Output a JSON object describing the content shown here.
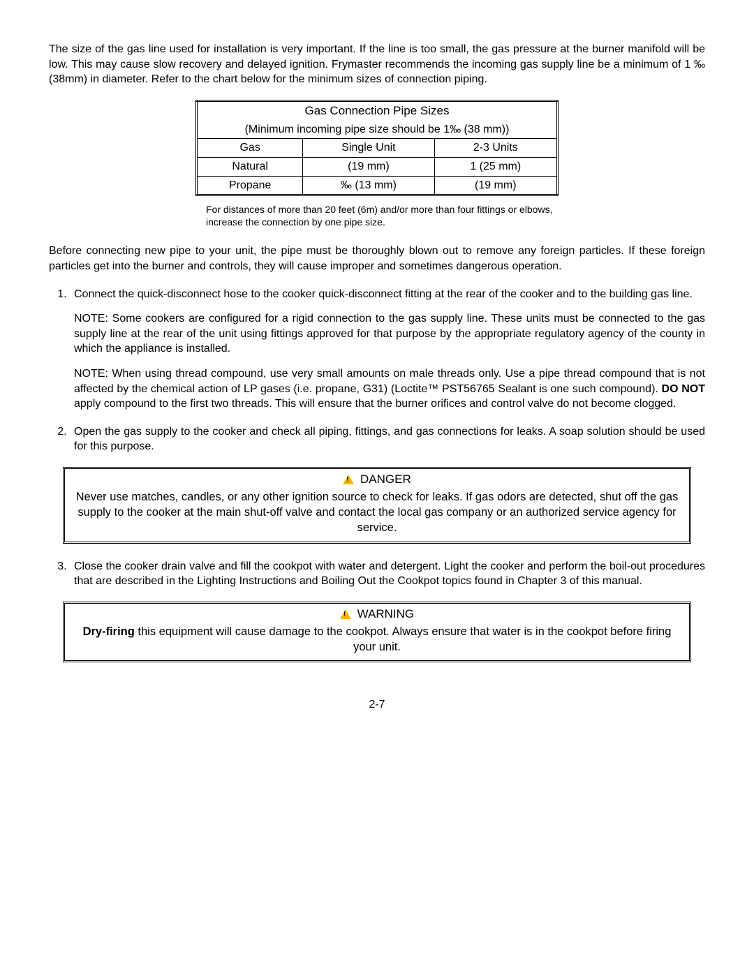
{
  "intro": "The size of the gas line used for installation is very important.  If the line is too small, the gas pressure at the burner manifold will be low.  This may cause slow recovery and delayed ignition.  Frymaster recommends the incoming gas supply line be a minimum of 1 ‰  (38mm) in diameter.  Refer to the chart below for the minimum sizes of connection piping.",
  "table": {
    "title": "Gas Connection Pipe Sizes",
    "subtitle": "(Minimum incoming pipe size should be 1‰ (38 mm))",
    "headers": {
      "c1": "Gas",
      "c2": "Single Unit",
      "c3": "2-3 Units"
    },
    "rows": [
      {
        "c1": "Natural",
        "c2": "(19 mm)",
        "c3": "1   (25 mm)"
      },
      {
        "c1": "Propane",
        "c2": "‰  (13 mm)",
        "c3": "(19 mm)"
      }
    ],
    "footnote": "For distances of more than 20 feet (6m) and/or more than four fittings or elbows, increase the connection by one pipe size."
  },
  "beforeConnecting": "Before connecting new pipe to your unit, the pipe must be thoroughly blown out to remove any foreign particles.  If these foreign particles get into the burner and controls, they will cause improper and sometimes dangerous operation.",
  "step1": {
    "main": "Connect the quick-disconnect hose to the cooker quick-disconnect fitting at the rear of the cooker and to the building gas line.",
    "note1": "NOTE:  Some cookers are configured for a rigid connection to the gas supply line.  These units must be connected to the gas supply line at the rear of the unit using fittings approved for that purpose by the appropriate regulatory agency of the county in which the appliance is installed.",
    "note2a": "NOTE:  When using thread compound, use very small amounts on male threads only.  Use a pipe thread compound that is not affected by the chemical action of LP gases (i.e. propane, G31) (Loctite™ PST56765 Sealant is one such compound).  ",
    "note2bold": "DO NOT",
    "note2b": " apply compound to the first two threads.  This will ensure that the burner orifices and control valve do not become clogged."
  },
  "step2": "Open the gas supply to the cooker and check all piping, fittings, and gas connections for leaks.  A soap solution should be used for this purpose.",
  "danger": {
    "title": "DANGER",
    "body": "Never use matches, candles, or any other ignition source to check for leaks.  If gas odors are detected, shut off the gas supply to the cooker at the main shut-off valve and contact the local gas company or an authorized service agency for service."
  },
  "step3": {
    "a": "Close the cooker drain valve and fill the cookpot with water and detergent.  Light the cooker and perform the boil-out procedures that are described in the ",
    "b": "Lighting Instructions",
    "c": " and ",
    "d": "Boiling Out the Cookpot",
    "e": " topics found in Chapter 3 of this manual."
  },
  "warning": {
    "title": "WARNING",
    "lead": "Dry-firing",
    "body": " this equipment will cause damage to the cookpot.  Always ensure that water is in the cookpot before firing your unit."
  },
  "pageNumber": "2-7"
}
